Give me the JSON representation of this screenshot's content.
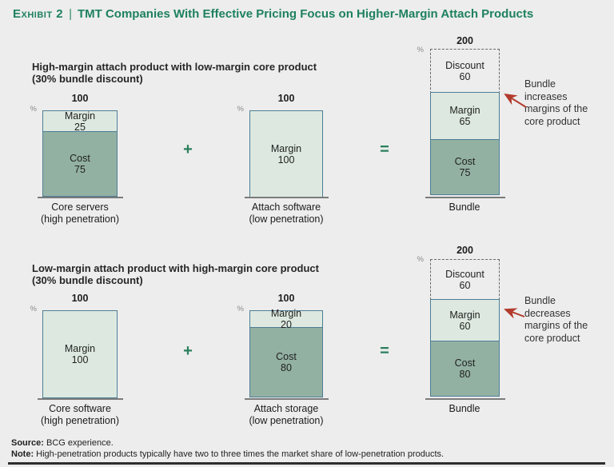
{
  "title": {
    "exhibit_label": "Exhibit 2",
    "separator": "|",
    "text": "TMT Companies With Effective Pricing Focus on Higher-Margin Attach Products"
  },
  "labels": {
    "percent": "%",
    "plus": "+",
    "equals": "="
  },
  "colors": {
    "background": "#ecedec",
    "title_green": "#1e815f",
    "segment_light": "#dde9e0",
    "segment_dark": "#93b1a3",
    "bar_border": "#4e7d95",
    "arrow_red": "#b23b2e"
  },
  "rows": [
    {
      "subtitle_line1": "High-margin attach product with low-margin core product",
      "subtitle_line2": "(30% bundle discount)",
      "bars": [
        {
          "total": "100",
          "segments": [
            {
              "label": "Margin",
              "value": 25
            },
            {
              "label": "Cost",
              "value": 75
            }
          ],
          "caption_line1": "Core servers",
          "caption_line2": "(high penetration)"
        },
        {
          "total": "100",
          "segments": [
            {
              "label": "Margin",
              "value": 100
            }
          ],
          "caption_line1": "Attach software",
          "caption_line2": "(low penetration)"
        },
        {
          "total": "200",
          "segments": [
            {
              "label": "Discount",
              "value": 60
            },
            {
              "label": "Margin",
              "value": 65
            },
            {
              "label": "Cost",
              "value": 75
            }
          ],
          "caption_line1": "Bundle",
          "caption_line2": ""
        }
      ],
      "annotation": [
        "Bundle",
        "increases",
        "margins of the",
        "core product"
      ]
    },
    {
      "subtitle_line1": "Low-margin attach product with high-margin core product",
      "subtitle_line2": "(30% bundle discount)",
      "bars": [
        {
          "total": "100",
          "segments": [
            {
              "label": "Margin",
              "value": 100
            }
          ],
          "caption_line1": "Core software",
          "caption_line2": "(high penetration)"
        },
        {
          "total": "100",
          "segments": [
            {
              "label": "Margin",
              "value": 20
            },
            {
              "label": "Cost",
              "value": 80
            }
          ],
          "caption_line1": "Attach storage",
          "caption_line2": "(low penetration)"
        },
        {
          "total": "200",
          "segments": [
            {
              "label": "Discount",
              "value": 60
            },
            {
              "label": "Margin",
              "value": 60
            },
            {
              "label": "Cost",
              "value": 80
            }
          ],
          "caption_line1": "Bundle",
          "caption_line2": ""
        }
      ],
      "annotation": [
        "Bundle",
        "decreases",
        "margins of the",
        "core product"
      ]
    }
  ],
  "footer": {
    "source_label": "Source:",
    "source_text": " BCG experience.",
    "note_label": "Note:",
    "note_text": " High-penetration products typically have two to three times the market share of low-penetration products."
  },
  "chart_data": [
    {
      "type": "bar",
      "stacked": true,
      "title": "High-margin attach product with low-margin core product (30% bundle discount)",
      "ylabel": "%",
      "categories": [
        "Core servers (high penetration)",
        "Attach software (low penetration)",
        "Bundle"
      ],
      "series": [
        {
          "name": "Cost",
          "values": [
            75,
            0,
            75
          ]
        },
        {
          "name": "Margin",
          "values": [
            25,
            100,
            65
          ]
        },
        {
          "name": "Discount",
          "values": [
            0,
            0,
            60
          ]
        }
      ],
      "totals": [
        100,
        100,
        200
      ],
      "ylim": [
        0,
        200
      ],
      "annotation": "Bundle increases margins of the core product"
    },
    {
      "type": "bar",
      "stacked": true,
      "title": "Low-margin attach product with high-margin core product (30% bundle discount)",
      "ylabel": "%",
      "categories": [
        "Core software (high penetration)",
        "Attach storage (low penetration)",
        "Bundle"
      ],
      "series": [
        {
          "name": "Cost",
          "values": [
            0,
            80,
            80
          ]
        },
        {
          "name": "Margin",
          "values": [
            100,
            20,
            60
          ]
        },
        {
          "name": "Discount",
          "values": [
            0,
            0,
            60
          ]
        }
      ],
      "totals": [
        100,
        100,
        200
      ],
      "ylim": [
        0,
        200
      ],
      "annotation": "Bundle decreases margins of the core product"
    }
  ]
}
